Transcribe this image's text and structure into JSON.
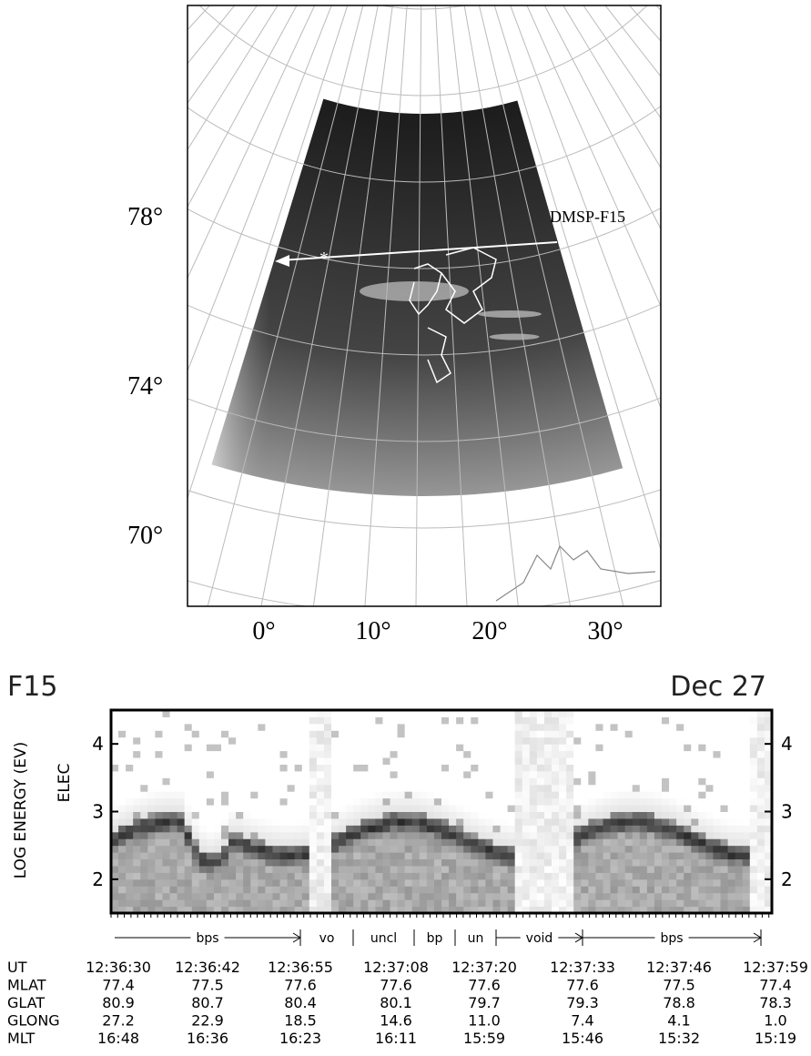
{
  "map": {
    "lat_labels": [
      "78°",
      "74°",
      "70°"
    ],
    "lon_labels": [
      "0°",
      "10°",
      "20°",
      "30°"
    ],
    "satellite": "DMSP-F15"
  },
  "spectrogram": {
    "title": "F15",
    "date": "Dec 27",
    "ylabel": "LOG ENERGY (EV)",
    "channel": "ELEC",
    "ylim": [
      1.5,
      4.5
    ],
    "yticks": [
      2,
      3,
      4
    ],
    "regions": [
      "bps",
      "vo",
      "uncl",
      "bp",
      "un",
      "void",
      "bps"
    ]
  },
  "table": {
    "rows": [
      [
        "UT",
        "12:36:30",
        "12:36:42",
        "12:36:55",
        "12:37:08",
        "12:37:20",
        "12:37:33",
        "12:37:46",
        "12:37:59"
      ],
      [
        "MLAT",
        "77.4",
        "77.5",
        "77.6",
        "77.6",
        "77.6",
        "77.6",
        "77.5",
        "77.4"
      ],
      [
        "GLAT",
        "80.9",
        "80.7",
        "80.4",
        "80.1",
        "79.7",
        "79.3",
        "78.8",
        "78.3"
      ],
      [
        "GLONG",
        "27.2",
        "22.9",
        "18.5",
        "14.6",
        "11.0",
        "7.4",
        "4.1",
        "1.0"
      ],
      [
        "MLT",
        "16:48",
        "16:36",
        "16:23",
        "16:11",
        "15:59",
        "15:46",
        "15:32",
        "15:19"
      ]
    ]
  }
}
